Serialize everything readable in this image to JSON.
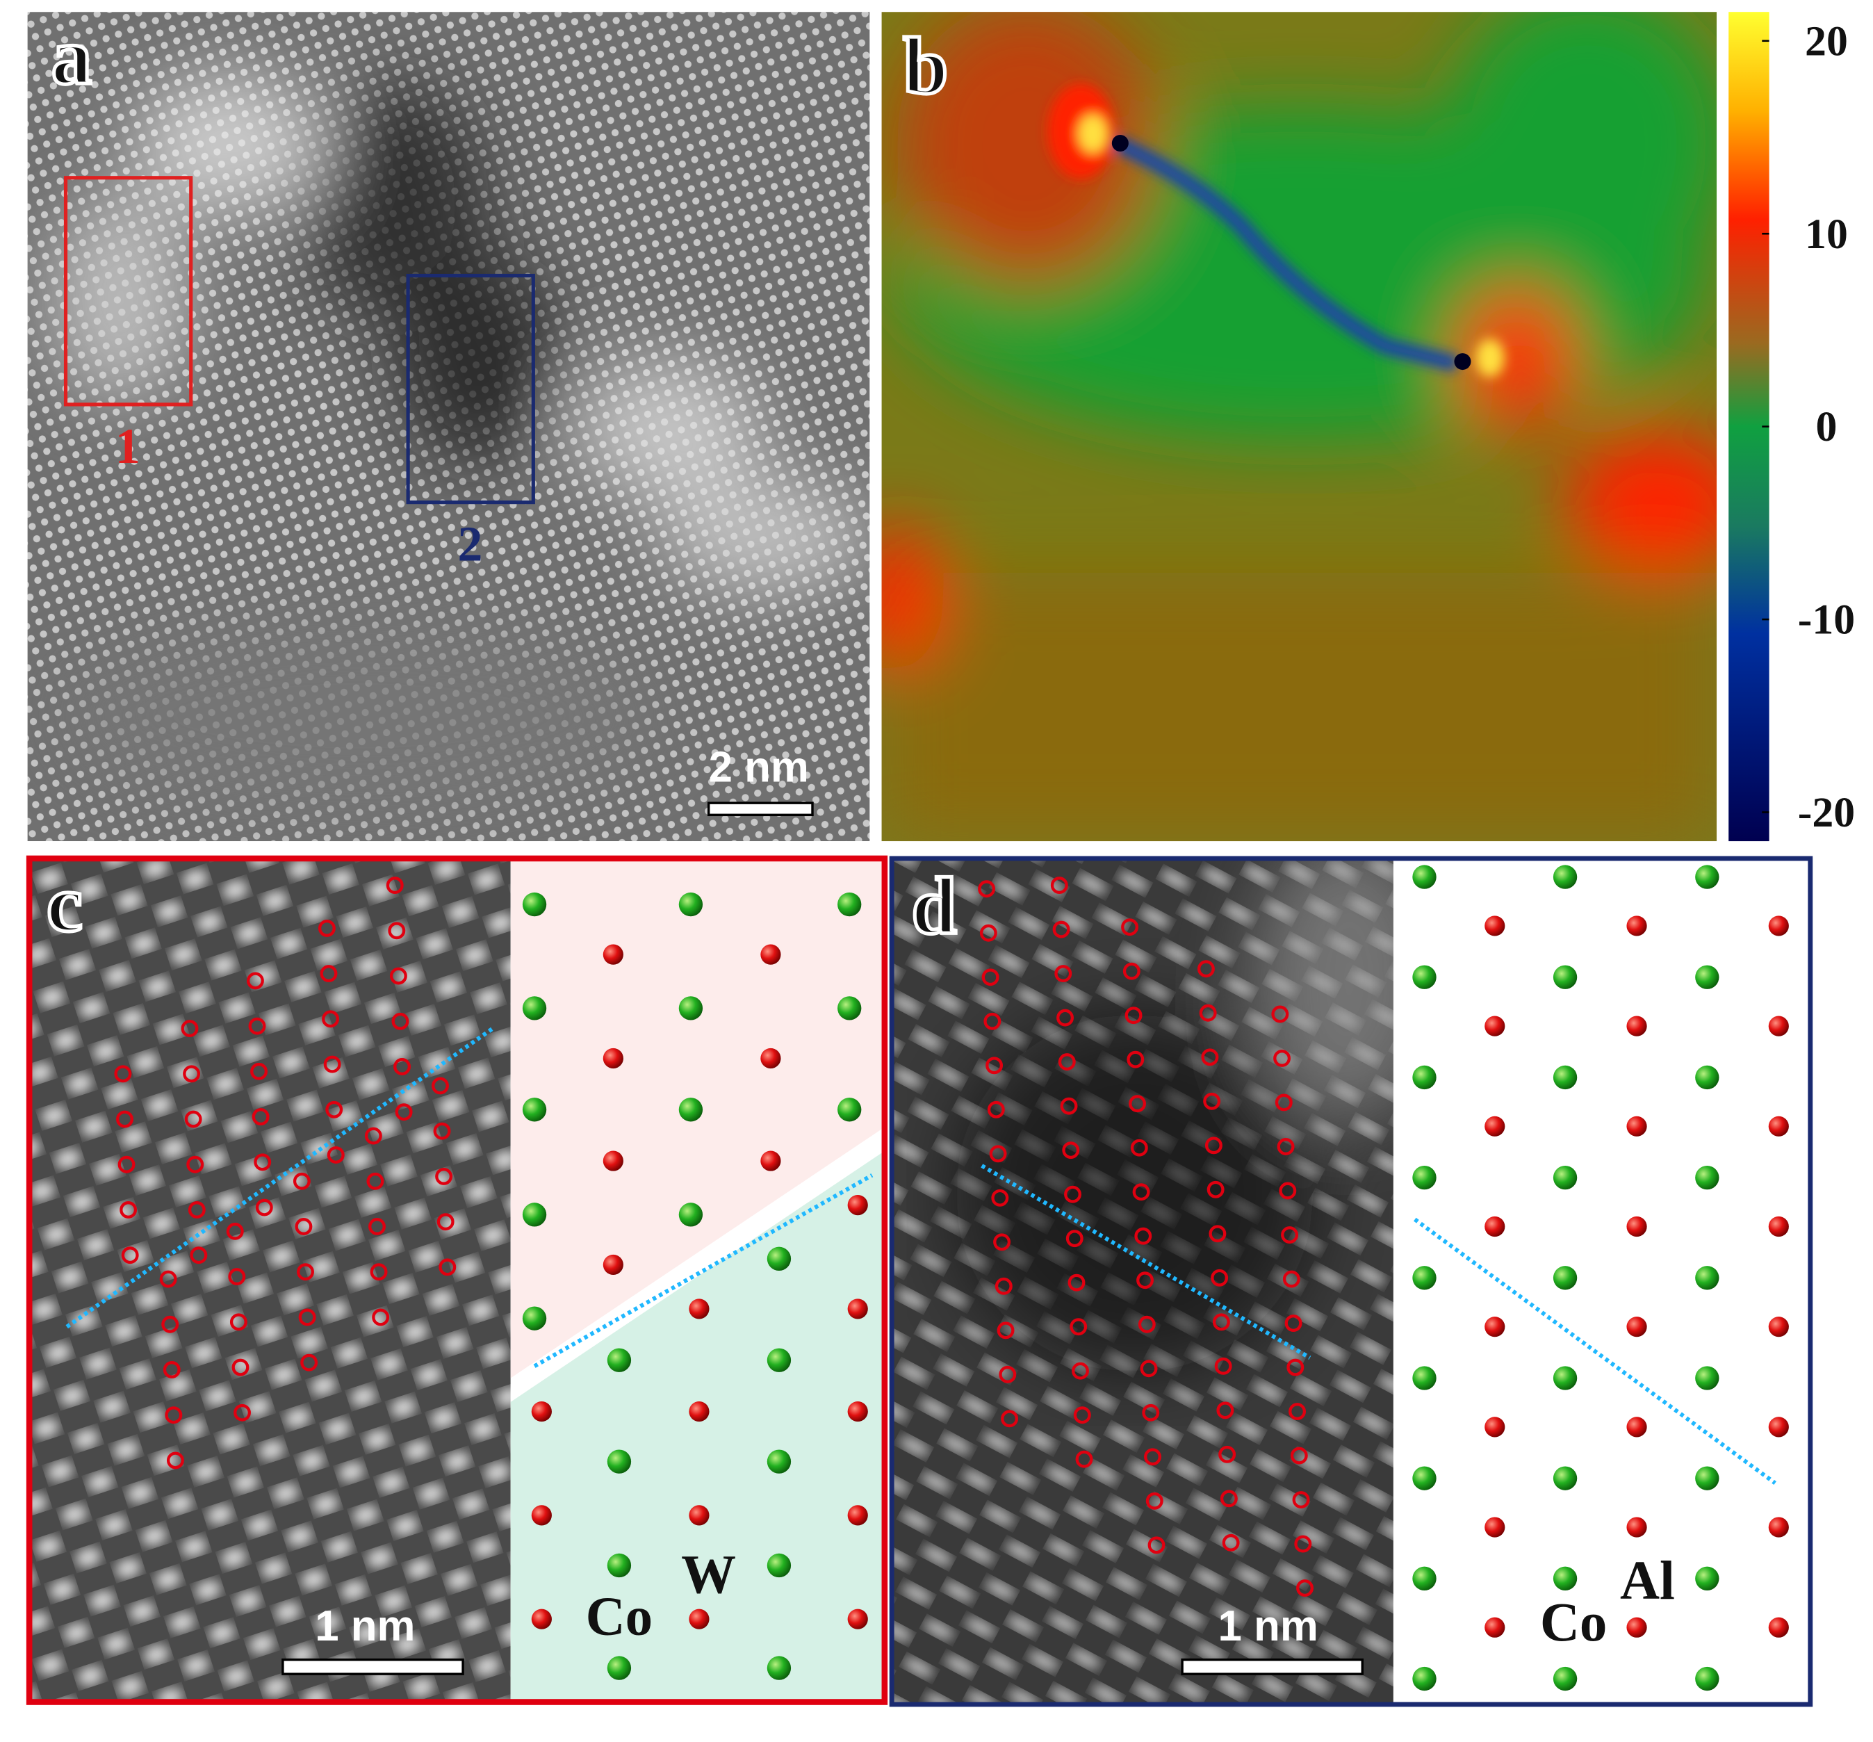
{
  "panel_a": {
    "label": "a",
    "box_1": "1",
    "box_2": "2",
    "scale_bar": "2 nm"
  },
  "panel_b": {
    "label": "b",
    "colorbar": {
      "lim": [
        -21.5,
        21.5
      ],
      "ticks": [
        20,
        10,
        0,
        -10,
        -20
      ]
    }
  },
  "panel_c": {
    "label": "c",
    "scale_bar": "1 nm",
    "atoms": [
      "Co",
      "W"
    ]
  },
  "panel_d": {
    "label": "d",
    "scale_bar": "1 nm",
    "atoms": [
      "Co",
      "Al"
    ]
  }
}
